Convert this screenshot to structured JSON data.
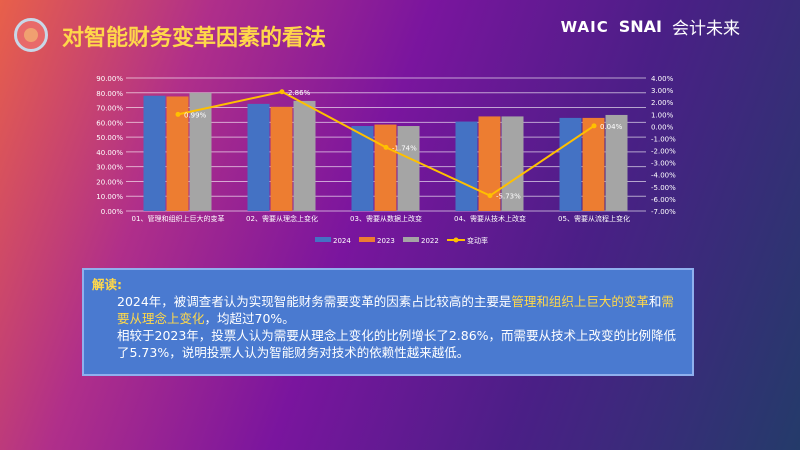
{
  "header": {
    "title": "对智能财务变革因素的看法",
    "logos": [
      "WAIC",
      "SNAI",
      "会计未来"
    ]
  },
  "chart_data": {
    "type": "bar+line",
    "categories": [
      "01、管理和组织上巨大的变革",
      "02、需要从理念上变化",
      "03、需要从数据上改变",
      "04、需要从技术上改变",
      "05、需要从流程上变化"
    ],
    "series": [
      {
        "name": "2024",
        "type": "bar",
        "color": "#4472c4",
        "values": [
          78,
          72.5,
          57.5,
          60.5,
          63
        ]
      },
      {
        "name": "2023",
        "type": "bar",
        "color": "#ed7d31",
        "values": [
          77.5,
          70.5,
          58.5,
          64,
          63
        ]
      },
      {
        "name": "2022",
        "type": "bar",
        "color": "#a5a5a5",
        "values": [
          80,
          74.5,
          57.5,
          64,
          65
        ]
      },
      {
        "name": "变动率",
        "type": "line",
        "axis": "right",
        "color": "#ffc000",
        "values": [
          0.99,
          2.86,
          -1.74,
          -5.73,
          0.04
        ],
        "labels": [
          "0.99%",
          "2.86%",
          "-1.74%",
          "-5.73%",
          "0.04%"
        ]
      }
    ],
    "ylim": [
      0,
      90
    ],
    "y2lim": [
      -7,
      4
    ],
    "yticks": [
      "0.00%",
      "10.00%",
      "20.00%",
      "30.00%",
      "40.00%",
      "50.00%",
      "60.00%",
      "70.00%",
      "80.00%",
      "90.00%"
    ],
    "y2ticks": [
      "-7.00%",
      "-6.00%",
      "-5.00%",
      "-4.00%",
      "-3.00%",
      "-2.00%",
      "-1.00%",
      "0.00%",
      "1.00%",
      "2.00%",
      "3.00%",
      "4.00%"
    ],
    "legend": "bottom",
    "grid": true
  },
  "text": {
    "heading": "解读:",
    "p1a": "2024年，被调查者认为实现智能财务需要变革的因素占比较高的主要是",
    "p1b": "管理和组织上巨大的变革",
    "p1c": "和",
    "p1d": "需要从理念上变化",
    "p1e": "，均超过70%。",
    "p2": "相较于2023年，投票人认为需要从理念上变化的比例增长了2.86%，而需要从技术上改变的比例降低了5.73%，说明投票人认为智能财务对技术的依赖性越来越低。"
  }
}
